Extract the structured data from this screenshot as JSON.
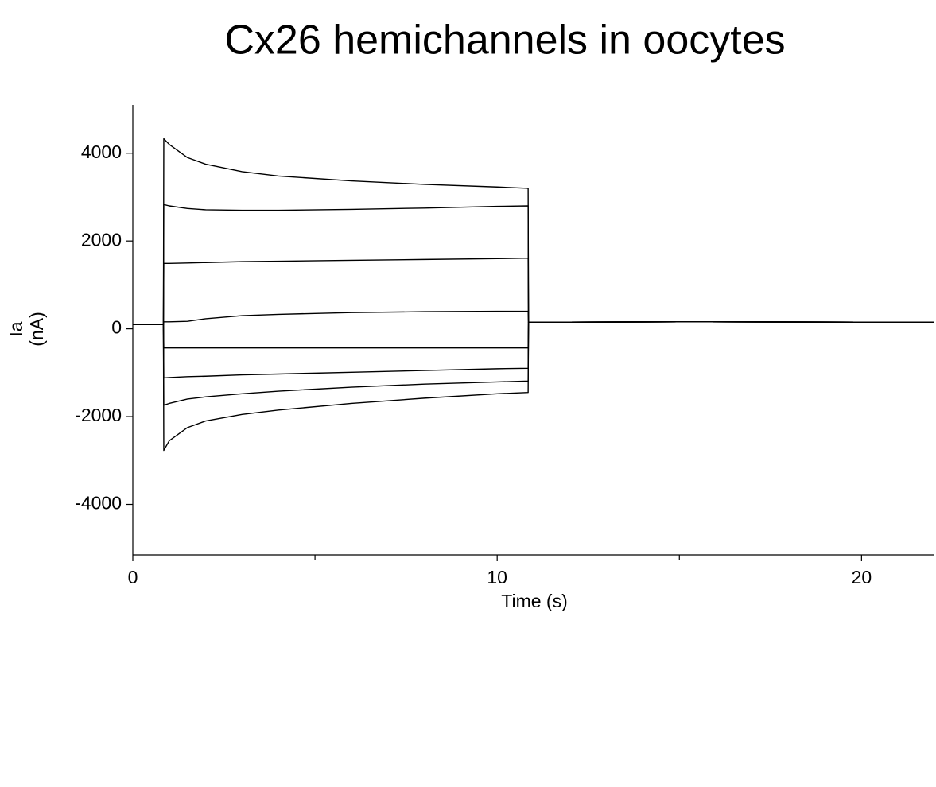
{
  "chart_data": {
    "type": "line",
    "title": "Cx26 hemichannels in oocytes",
    "xlabel": "Time (s)",
    "ylabel": [
      "Ia",
      "(nA)"
    ],
    "x": [
      0,
      0.84,
      0.85,
      1,
      1.5,
      2,
      3,
      4,
      6,
      8,
      10,
      10.85,
      10.86,
      15,
      22
    ],
    "series": [
      {
        "color": "#000000",
        "values": [
          100,
          100,
          4330,
          4200,
          3900,
          3750,
          3580,
          3480,
          3370,
          3290,
          3230,
          3200,
          150,
          160,
          150
        ]
      },
      {
        "color": "#000000",
        "values": [
          100,
          100,
          2830,
          2800,
          2740,
          2710,
          2700,
          2700,
          2720,
          2750,
          2790,
          2800,
          150,
          160,
          150
        ]
      },
      {
        "color": "#000000",
        "values": [
          100,
          100,
          1490,
          1490,
          1500,
          1510,
          1530,
          1540,
          1560,
          1580,
          1600,
          1610,
          150,
          160,
          150
        ]
      },
      {
        "color": "#000000",
        "values": [
          100,
          100,
          160,
          160,
          170,
          230,
          300,
          330,
          370,
          390,
          400,
          400,
          150,
          160,
          150
        ]
      },
      {
        "color": "#000000",
        "values": [
          100,
          100,
          -435,
          -435,
          -435,
          -435,
          -435,
          -435,
          -435,
          -435,
          -435,
          -435,
          150,
          160,
          150
        ]
      },
      {
        "color": "#000000",
        "values": [
          100,
          100,
          -1120,
          -1110,
          -1090,
          -1080,
          -1050,
          -1030,
          -990,
          -950,
          -910,
          -900,
          150,
          160,
          150
        ]
      },
      {
        "color": "#000000",
        "values": [
          100,
          100,
          -1740,
          -1700,
          -1600,
          -1550,
          -1480,
          -1420,
          -1330,
          -1260,
          -1210,
          -1190,
          150,
          160,
          150
        ]
      },
      {
        "color": "#000000",
        "values": [
          100,
          100,
          -2770,
          -2550,
          -2250,
          -2100,
          -1950,
          -1850,
          -1700,
          -1580,
          -1480,
          -1450,
          150,
          160,
          150
        ]
      }
    ],
    "xlim": [
      0,
      22
    ],
    "xticks": [
      0,
      10,
      20
    ],
    "xticks_minor": [
      5,
      15
    ],
    "ylim": [
      -5150,
      5100
    ],
    "yticks": [
      4000,
      2000,
      0,
      -2000,
      -4000
    ],
    "grid": false
  }
}
